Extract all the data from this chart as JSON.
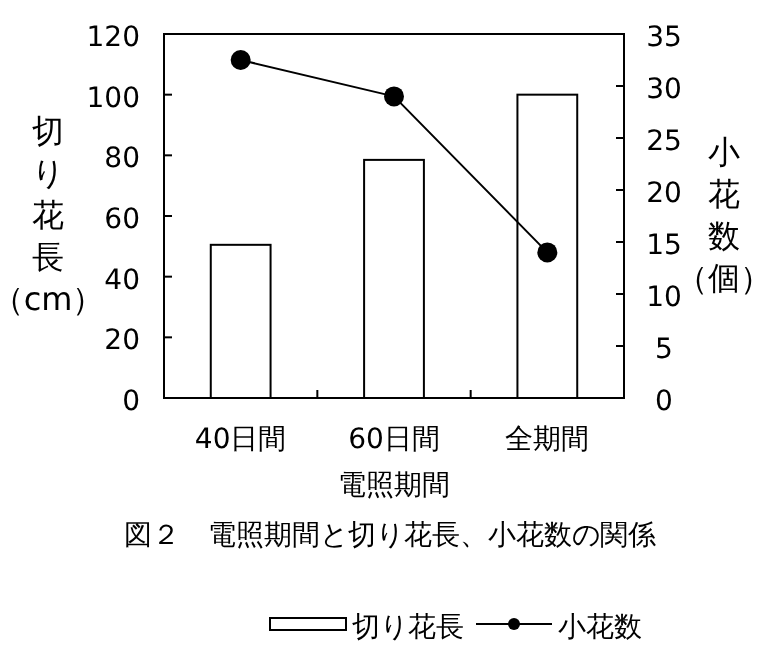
{
  "chart_data": {
    "type": "bar",
    "categories": [
      "40日間",
      "60日間",
      "全期間"
    ],
    "series": [
      {
        "name": "切り花長",
        "color": "#ffffff",
        "values": [
          50.5,
          78.5,
          100
        ]
      },
      {
        "name": "小花数",
        "type": "line",
        "axis": "y2",
        "color": "#000000",
        "values": [
          32.5,
          29,
          14
        ]
      }
    ],
    "ylim": [
      0,
      120
    ],
    "yticks": [
      0,
      20,
      40,
      60,
      80,
      100,
      120
    ],
    "y2lim": [
      0,
      35
    ],
    "y2ticks": [
      0,
      5,
      10,
      15,
      20,
      25,
      30,
      35
    ],
    "xlabel": "電照期間",
    "ylabel": "切り花長（cm）",
    "y2label": "小花数（個）",
    "annotations": [
      "図２　電照期間と切り花長、小花数の関係"
    ],
    "marker": "circle",
    "line_style": "solid",
    "legend": "bottom"
  }
}
